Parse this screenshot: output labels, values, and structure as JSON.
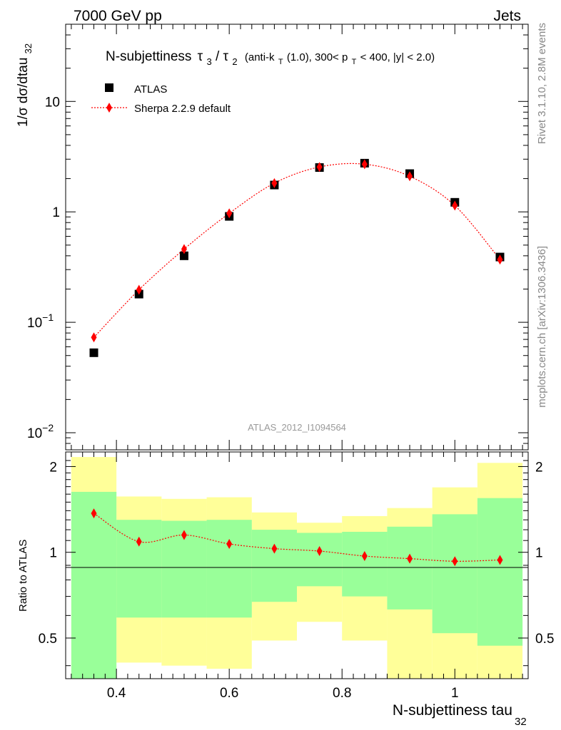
{
  "header": {
    "left": "7000 GeV pp",
    "right": "Jets"
  },
  "side_labels": {
    "rivet": "Rivet 3.1.10,  2.8M events",
    "source": "mcplots.cern.ch [arXiv:1306.3436]"
  },
  "plot_title": {
    "main": "N-subjettiness",
    "tau3": "τ",
    "sub3": "3",
    "slash": "/",
    "tau2": "τ",
    "sub2": "2",
    "cuts_a": "(anti-k",
    "cuts_t": "T",
    "cuts_b": "(1.0), 300< p",
    "cuts_c": "T",
    "cuts_d": " < 400, |y| < 2.0)"
  },
  "analysis_id": "ATLAS_2012_I1094564",
  "chart_data": {
    "type": "scatter",
    "x_axis": {
      "label_main": "N-subjettiness tau",
      "label_sub": "32",
      "range": [
        0.31,
        1.13
      ],
      "ticks": [
        "0.4",
        "0.6",
        "0.8",
        "1"
      ]
    },
    "main_panel": {
      "ylabel_main": "1/σ dσ/dtau",
      "ylabel_sub": "32",
      "yscale": "log",
      "ylim": [
        0.007,
        50
      ],
      "yticks": [
        {
          "value": 0.01,
          "base": "10",
          "exp": "−2"
        },
        {
          "value": 0.1,
          "base": "10",
          "exp": "−1"
        },
        {
          "value": 1,
          "base": "1",
          "exp": ""
        },
        {
          "value": 10,
          "base": "10",
          "exp": ""
        }
      ],
      "bins": [
        0.32,
        0.4,
        0.48,
        0.56,
        0.64,
        0.72,
        0.8,
        0.88,
        0.96,
        1.04,
        1.12
      ],
      "series": [
        {
          "name": "ATLAS",
          "marker": "square",
          "color": "#000000",
          "x": [
            0.36,
            0.44,
            0.52,
            0.6,
            0.68,
            0.76,
            0.84,
            0.92,
            1.0,
            1.08
          ],
          "y": [
            0.053,
            0.18,
            0.4,
            0.91,
            1.75,
            2.52,
            2.76,
            2.22,
            1.22,
            0.39
          ]
        },
        {
          "name": "Sherpa 2.2.9 default",
          "marker": "diamond",
          "line": "dotted",
          "color": "#ff0000",
          "x": [
            0.36,
            0.44,
            0.52,
            0.6,
            0.68,
            0.76,
            0.84,
            0.92,
            1.0,
            1.08
          ],
          "y": [
            0.073,
            0.197,
            0.46,
            0.97,
            1.82,
            2.55,
            2.7,
            2.1,
            1.14,
            0.37
          ]
        }
      ]
    },
    "ratio_panel": {
      "ylabel": "Ratio to ATLAS",
      "ylim": [
        0.36,
        2.25
      ],
      "yticks": [
        "0.5",
        "1",
        "2"
      ],
      "bins": [
        0.32,
        0.4,
        0.48,
        0.56,
        0.64,
        0.72,
        0.8,
        0.88,
        0.96,
        1.04,
        1.12
      ],
      "band_stat": {
        "color": "#99ff99",
        "lo": [
          0.32,
          0.59,
          0.59,
          0.59,
          0.67,
          0.76,
          0.7,
          0.63,
          0.52,
          0.47
        ],
        "hi": [
          1.63,
          1.3,
          1.29,
          1.3,
          1.2,
          1.17,
          1.18,
          1.23,
          1.36,
          1.55
        ]
      },
      "band_total": {
        "color": "#ffff99",
        "lo": [
          0.32,
          0.41,
          0.4,
          0.39,
          0.49,
          0.57,
          0.49,
          0.36,
          0.28,
          0.23
        ],
        "hi": [
          2.16,
          1.57,
          1.54,
          1.56,
          1.38,
          1.27,
          1.34,
          1.43,
          1.69,
          2.06
        ]
      },
      "sherpa_ratio": {
        "color": "#ff0000",
        "x": [
          0.36,
          0.44,
          0.52,
          0.6,
          0.68,
          0.76,
          0.84,
          0.92,
          1.0,
          1.08
        ],
        "y": [
          1.37,
          1.09,
          1.15,
          1.07,
          1.03,
          1.01,
          0.97,
          0.95,
          0.93,
          0.94
        ]
      }
    }
  }
}
